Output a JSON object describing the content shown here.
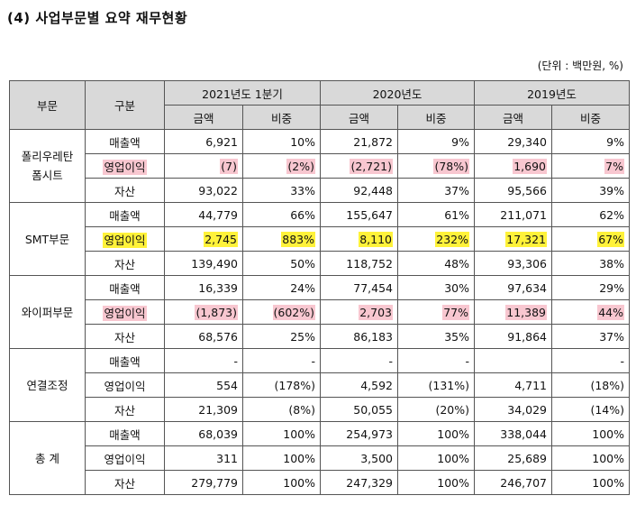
{
  "title": "(4) 사업부문별 요약 재무현황",
  "unit": "(단위 : 백만원, %)",
  "header": {
    "segment": "부문",
    "category": "구분",
    "periods": [
      "2021년도 1분기",
      "2020년도",
      "2019년도"
    ],
    "amount": "금액",
    "ratio": "비중"
  },
  "segments": [
    {
      "name_lines": [
        "폴리우레탄",
        "폼시트"
      ],
      "rows": [
        {
          "label": "매출액",
          "vals": [
            "6,921",
            "10%",
            "21,872",
            "9%",
            "29,340",
            "9%"
          ]
        },
        {
          "label": "영업이익",
          "vals": [
            "(7)",
            "(2%)",
            "(2,721)",
            "(78%)",
            "1,690",
            "7%"
          ]
        },
        {
          "label": "자산",
          "vals": [
            "93,022",
            "33%",
            "92,448",
            "37%",
            "95,566",
            "39%"
          ]
        }
      ]
    },
    {
      "name_lines": [
        "SMT부문"
      ],
      "rows": [
        {
          "label": "매출액",
          "vals": [
            "44,779",
            "66%",
            "155,647",
            "61%",
            "211,071",
            "62%"
          ]
        },
        {
          "label": "영업이익",
          "vals": [
            "2,745",
            "883%",
            "8,110",
            "232%",
            "17,321",
            "67%"
          ]
        },
        {
          "label": "자산",
          "vals": [
            "139,490",
            "50%",
            "118,752",
            "48%",
            "93,306",
            "38%"
          ]
        }
      ]
    },
    {
      "name_lines": [
        "와이퍼부문"
      ],
      "rows": [
        {
          "label": "매출액",
          "vals": [
            "16,339",
            "24%",
            "77,454",
            "30%",
            "97,634",
            "29%"
          ]
        },
        {
          "label": "영업이익",
          "vals": [
            "(1,873)",
            "(602%)",
            "2,703",
            "77%",
            "11,389",
            "44%"
          ]
        },
        {
          "label": "자산",
          "vals": [
            "68,576",
            "25%",
            "86,183",
            "35%",
            "91,864",
            "37%"
          ]
        }
      ]
    },
    {
      "name_lines": [
        "연결조정"
      ],
      "rows": [
        {
          "label": "매출액",
          "vals": [
            "-",
            "-",
            "-",
            "-",
            "",
            "-"
          ]
        },
        {
          "label": "영업이익",
          "vals": [
            "554",
            "(178%)",
            "4,592",
            "(131%)",
            "4,711",
            "(18%)"
          ]
        },
        {
          "label": "자산",
          "vals": [
            "21,309",
            "(8%)",
            "50,055",
            "(20%)",
            "34,029",
            "(14%)"
          ]
        }
      ]
    },
    {
      "name_lines": [
        "총 계"
      ],
      "rows": [
        {
          "label": "매출액",
          "vals": [
            "68,039",
            "100%",
            "254,973",
            "100%",
            "338,044",
            "100%"
          ]
        },
        {
          "label": "영업이익",
          "vals": [
            "311",
            "100%",
            "3,500",
            "100%",
            "25,689",
            "100%"
          ]
        },
        {
          "label": "자산",
          "vals": [
            "279,779",
            "100%",
            "247,329",
            "100%",
            "246,707",
            "100%"
          ]
        }
      ]
    }
  ]
}
